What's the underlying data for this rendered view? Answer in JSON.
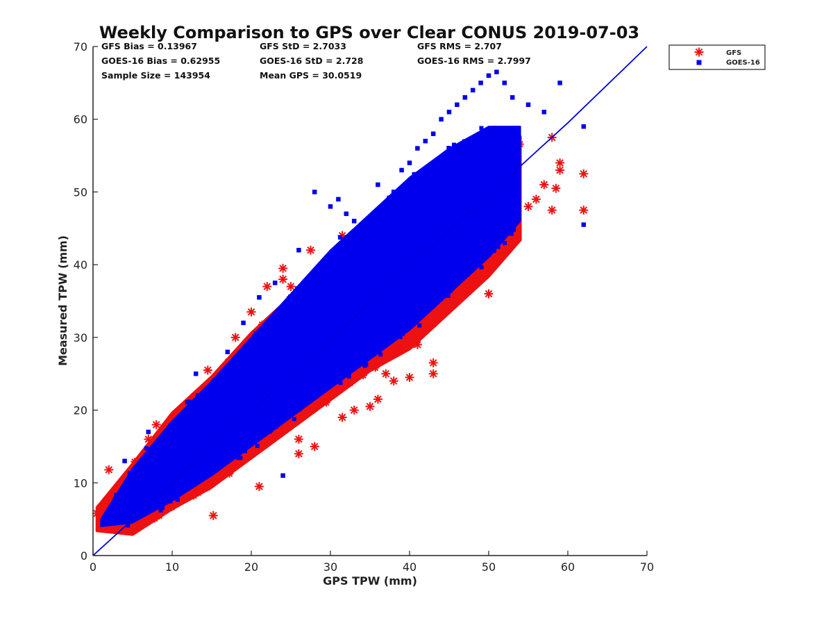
{
  "chart_data": {
    "type": "scatter",
    "title": "Weekly Comparison to GPS over Clear CONUS 2019-07-03",
    "xlabel": "GPS TPW (mm)",
    "ylabel": "Measured TPW (mm)",
    "xlim": [
      0,
      70
    ],
    "ylim": [
      0,
      70
    ],
    "xticks": [
      0,
      10,
      20,
      30,
      40,
      50,
      60,
      70
    ],
    "yticks": [
      0,
      10,
      20,
      30,
      40,
      50,
      60,
      70
    ],
    "grid": false,
    "legend_position": "outside top-right",
    "stats": [
      {
        "text": "GFS Bias = 0.13967"
      },
      {
        "text": "GFS StD = 2.7033"
      },
      {
        "text": "GFS RMS = 2.707"
      },
      {
        "text": "GOES-16 Bias = 0.62955"
      },
      {
        "text": "GOES-16 StD = 2.728"
      },
      {
        "text": "GOES-16 RMS = 2.7997"
      },
      {
        "text": "Sample Size = 143954"
      },
      {
        "text": "Mean GPS = 30.0519"
      }
    ],
    "reference_line": {
      "x": [
        0,
        60,
        70
      ],
      "y": [
        0,
        59.5,
        70
      ],
      "color": "#0000dd"
    },
    "series": [
      {
        "name": "GFS",
        "marker": "asterisk",
        "color": "#ee1111",
        "band": [
          [
            0.5,
            4,
            6
          ],
          [
            5,
            3.5,
            12
          ],
          [
            10,
            7,
            19
          ],
          [
            15,
            10,
            24
          ],
          [
            20,
            14,
            30
          ],
          [
            25,
            18,
            35
          ],
          [
            30,
            22,
            41
          ],
          [
            35,
            26,
            45
          ],
          [
            40,
            29,
            50
          ],
          [
            45,
            34,
            54
          ],
          [
            50,
            39,
            56
          ],
          [
            54,
            44,
            57
          ]
        ],
        "outliers": [
          [
            0.5,
            5.8
          ],
          [
            2,
            11.8
          ],
          [
            7,
            16
          ],
          [
            8,
            18
          ],
          [
            10,
            17.3
          ],
          [
            12,
            21
          ],
          [
            13,
            22
          ],
          [
            14.5,
            25.5
          ],
          [
            15.2,
            5.5
          ],
          [
            16.5,
            25.5
          ],
          [
            18,
            30
          ],
          [
            20,
            33.5
          ],
          [
            21,
            9.5
          ],
          [
            22,
            37
          ],
          [
            24,
            39.5
          ],
          [
            24,
            38
          ],
          [
            25,
            37
          ],
          [
            26,
            14
          ],
          [
            26,
            16
          ],
          [
            27.5,
            42
          ],
          [
            28,
            15
          ],
          [
            30,
            22
          ],
          [
            31.5,
            44
          ],
          [
            31.5,
            19
          ],
          [
            33,
            20
          ],
          [
            35,
            20.5
          ],
          [
            36,
            21.5
          ],
          [
            37,
            25
          ],
          [
            38,
            24
          ],
          [
            40,
            24.5
          ],
          [
            41,
            29
          ],
          [
            42,
            31
          ],
          [
            43,
            26.5
          ],
          [
            43,
            25
          ],
          [
            44,
            33
          ],
          [
            46,
            35
          ],
          [
            47,
            37
          ],
          [
            48,
            38
          ],
          [
            50,
            36
          ],
          [
            51,
            42
          ],
          [
            53,
            45
          ],
          [
            55,
            48
          ],
          [
            56,
            49
          ],
          [
            57,
            51
          ],
          [
            58,
            47.5
          ],
          [
            58.5,
            50.5
          ],
          [
            59,
            54
          ],
          [
            59,
            53
          ],
          [
            62,
            52.5
          ],
          [
            62,
            47.5
          ],
          [
            58,
            57.5
          ]
        ]
      },
      {
        "name": "GOES-16",
        "marker": "square",
        "color": "#0000ee",
        "band": [
          [
            1,
            4,
            5
          ],
          [
            5,
            4.5,
            12
          ],
          [
            10,
            7.5,
            18.5
          ],
          [
            15,
            11,
            24
          ],
          [
            20,
            15,
            30
          ],
          [
            25,
            19,
            36
          ],
          [
            30,
            23,
            42
          ],
          [
            35,
            27,
            47
          ],
          [
            40,
            31,
            52
          ],
          [
            45,
            36,
            56
          ],
          [
            50,
            41,
            59
          ],
          [
            54,
            46,
            59
          ]
        ],
        "outliers": [
          [
            4,
            13
          ],
          [
            7,
            17
          ],
          [
            17,
            28
          ],
          [
            19,
            32
          ],
          [
            21,
            35.5
          ],
          [
            23,
            37.5
          ],
          [
            26,
            42
          ],
          [
            28,
            50
          ],
          [
            30,
            48
          ],
          [
            31,
            49
          ],
          [
            32,
            47
          ],
          [
            33,
            46
          ],
          [
            34,
            45
          ],
          [
            36,
            51
          ],
          [
            38,
            50
          ],
          [
            39,
            53
          ],
          [
            40,
            54
          ],
          [
            41,
            56
          ],
          [
            42,
            57
          ],
          [
            43,
            58
          ],
          [
            44,
            60
          ],
          [
            45,
            61
          ],
          [
            46,
            62
          ],
          [
            47,
            63
          ],
          [
            48,
            64
          ],
          [
            49,
            65
          ],
          [
            50,
            66
          ],
          [
            51,
            66.5
          ],
          [
            52,
            65
          ],
          [
            53,
            63
          ],
          [
            55,
            62
          ],
          [
            57,
            61
          ],
          [
            59,
            65
          ],
          [
            62,
            59
          ],
          [
            62,
            45.5
          ],
          [
            24,
            11
          ],
          [
            21,
            29
          ],
          [
            13,
            25
          ],
          [
            11,
            15
          ]
        ]
      }
    ]
  }
}
